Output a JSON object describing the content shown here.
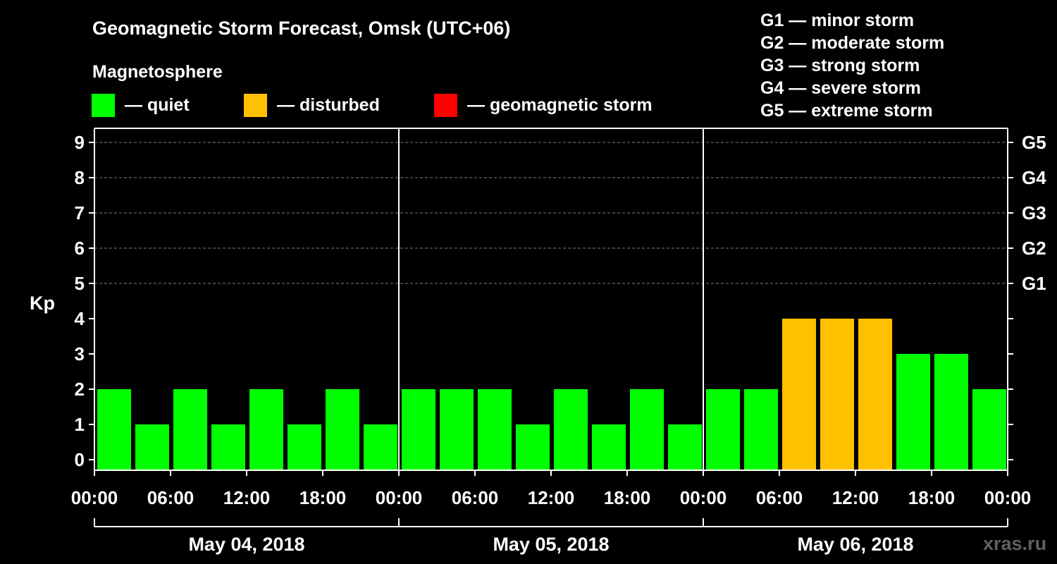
{
  "colors": {
    "quiet": "#00ff00",
    "disturbed": "#ffc000",
    "storm": "#ff0000",
    "background": "#000000",
    "axis": "#ffffff",
    "grid": "#808080",
    "watermark": "#606060"
  },
  "legend": {
    "title": "Magnetosphere",
    "items": [
      {
        "key": "quiet",
        "label": "— quiet"
      },
      {
        "key": "disturbed",
        "label": "— disturbed"
      },
      {
        "key": "storm",
        "label": "— geomagnetic storm"
      }
    ]
  },
  "g_scale": [
    "G1 — minor storm",
    "G2 — moderate storm",
    "G3 — strong storm",
    "G4 — severe storm",
    "G5 — extreme storm"
  ],
  "watermark": "xras.ru",
  "chart_data": {
    "type": "bar",
    "title": "Geomagnetic Storm Forecast, Omsk (UTC+06)",
    "ylabel": "Kp",
    "xlabel": "",
    "ylim": [
      0,
      9
    ],
    "yticks": [
      0,
      1,
      2,
      3,
      4,
      5,
      6,
      7,
      8,
      9
    ],
    "right_ticks": [
      {
        "value": 5,
        "label": "G1"
      },
      {
        "value": 6,
        "label": "G2"
      },
      {
        "value": 7,
        "label": "G3"
      },
      {
        "value": 8,
        "label": "G4"
      },
      {
        "value": 9,
        "label": "G5"
      }
    ],
    "dashed_grid_values": [
      5,
      6,
      7,
      8,
      9
    ],
    "x_tick_labels": [
      "00:00",
      "06:00",
      "12:00",
      "18:00",
      "00:00",
      "06:00",
      "12:00",
      "18:00",
      "00:00",
      "06:00",
      "12:00",
      "18:00",
      "00:00"
    ],
    "days": [
      "May 04, 2018",
      "May 05, 2018",
      "May 06, 2018"
    ],
    "interval_hours": 3,
    "values": [
      2,
      1,
      2,
      1,
      2,
      1,
      2,
      1,
      2,
      2,
      2,
      1,
      2,
      1,
      2,
      1,
      2,
      2,
      4,
      4,
      4,
      3,
      3,
      2
    ],
    "status": [
      "quiet",
      "quiet",
      "quiet",
      "quiet",
      "quiet",
      "quiet",
      "quiet",
      "quiet",
      "quiet",
      "quiet",
      "quiet",
      "quiet",
      "quiet",
      "quiet",
      "quiet",
      "quiet",
      "quiet",
      "quiet",
      "disturbed",
      "disturbed",
      "disturbed",
      "quiet",
      "quiet",
      "quiet"
    ]
  }
}
